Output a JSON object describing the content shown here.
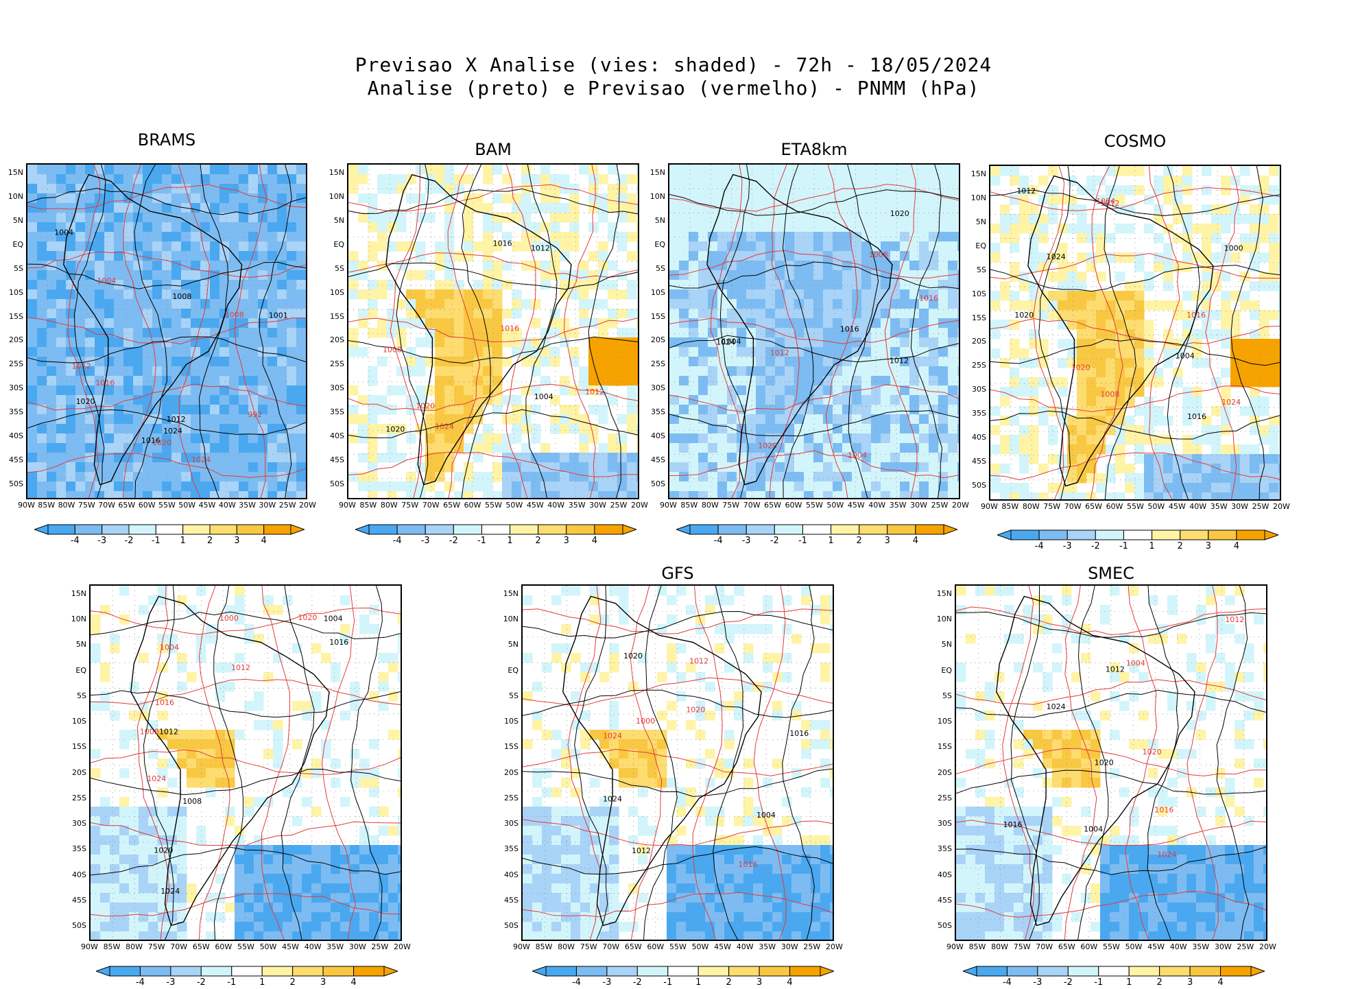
{
  "title": {
    "line1": "Previsao X Analise (vies: shaded) - 72h - 18/05/2024",
    "line2": "Analise (preto) e Previsao (vermelho) - PNMM (hPa)"
  },
  "axes": {
    "lat_labels": [
      "15N",
      "10N",
      "5N",
      "EQ",
      "5S",
      "10S",
      "15S",
      "20S",
      "25S",
      "30S",
      "35S",
      "40S",
      "45S",
      "50S"
    ],
    "lon_labels": [
      "90W",
      "85W",
      "80W",
      "75W",
      "70W",
      "65W",
      "60W",
      "55W",
      "50W",
      "45W",
      "40W",
      "35W",
      "30W",
      "25W",
      "20W"
    ]
  },
  "colorbar": {
    "labels": [
      "-4",
      "-3",
      "-2",
      "-1",
      "1",
      "2",
      "3",
      "4"
    ],
    "colors": [
      "#4aa8f0",
      "#7dbcf2",
      "#a9d3f7",
      "#d2f5fb",
      "#ffffff",
      "#fff3a6",
      "#fddc70",
      "#f9c842",
      "#f6a300"
    ]
  },
  "contour_colors": {
    "analysis": "#000000",
    "forecast": "#e23a3a"
  },
  "panels": [
    {
      "name": "BRAMS",
      "bias": "neg-strong",
      "labels_black": [
        "1016",
        "1012",
        "1008",
        "1004",
        "1001",
        "1020",
        "1024"
      ],
      "labels_red": [
        "1012",
        "1008",
        "1004",
        "1016",
        "992",
        "1020",
        "1024"
      ]
    },
    {
      "name": "BAM",
      "bias": "pos",
      "labels_black": [
        "1016",
        "1012",
        "1004",
        "1020"
      ],
      "labels_red": [
        "1016",
        "1008",
        "1012",
        "1020",
        "1024"
      ]
    },
    {
      "name": "ETA8km",
      "bias": "neg",
      "labels_black": [
        "1016",
        "1012",
        "1020",
        "1024",
        "1004"
      ],
      "labels_red": [
        "1016",
        "1012",
        "1020",
        "1008",
        "1004"
      ]
    },
    {
      "name": "COSMO",
      "bias": "pos",
      "labels_black": [
        "1016",
        "1012",
        "1020",
        "1024",
        "1004",
        "1000"
      ],
      "labels_red": [
        "1016",
        "1012",
        "1020",
        "1024",
        "1008",
        "1004"
      ]
    },
    {
      "name": "",
      "bias": "mixed",
      "labels_black": [
        "1016",
        "1012",
        "1020",
        "1024",
        "1008",
        "1004"
      ],
      "labels_red": [
        "1016",
        "1012",
        "1020",
        "1024",
        "1008",
        "1004",
        "1000"
      ]
    },
    {
      "name": "GFS",
      "bias": "mixed",
      "labels_black": [
        "1016",
        "1012",
        "1020",
        "1024",
        "1004"
      ],
      "labels_red": [
        "1016",
        "1012",
        "1020",
        "1024",
        "1000"
      ]
    },
    {
      "name": "SMEC",
      "bias": "mixed",
      "labels_black": [
        "1016",
        "1012",
        "1020",
        "1024",
        "1004"
      ],
      "labels_red": [
        "1016",
        "1012",
        "1020",
        "1024",
        "1004"
      ]
    }
  ]
}
